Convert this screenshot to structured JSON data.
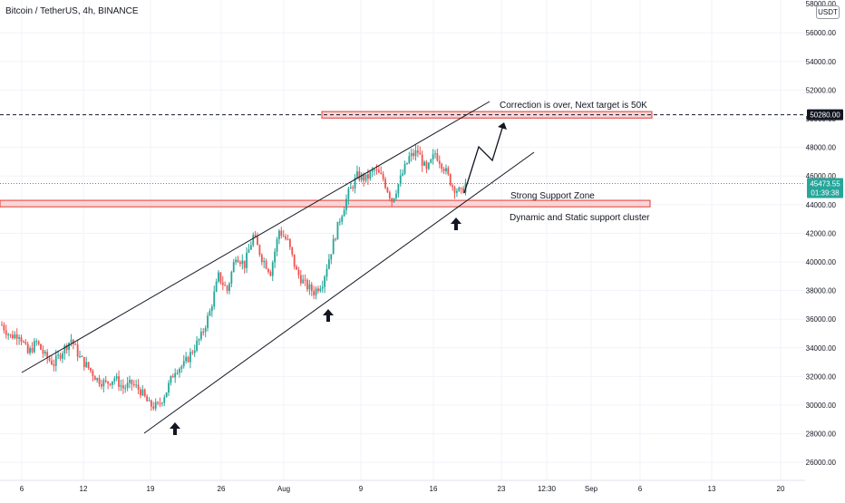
{
  "header": {
    "symbol": "Bitcoin / TetherUS, 4h, BINANCE",
    "currency": "USDT",
    "top_price_cut": "58000.00"
  },
  "colors": {
    "up": "#26a69a",
    "down": "#ef5350",
    "grid": "#f0f3fa",
    "zone_fill": "#f8c8c8",
    "zone_border": "#e53935",
    "price_label_bg": "#131722",
    "current_price_bg": "#26a69a"
  },
  "chart_data": {
    "type": "candlestick",
    "timeframe": "4h",
    "ylim": [
      25000,
      58500
    ],
    "y_ticks": [
      26000,
      28000,
      30000,
      32000,
      34000,
      36000,
      38000,
      40000,
      42000,
      44000,
      46000,
      48000,
      50000,
      52000,
      54000,
      56000
    ],
    "x_ticks": [
      "6",
      "12",
      "19",
      "26",
      "Aug",
      "9",
      "16",
      "23",
      "12:30",
      "Sep",
      "6",
      "13",
      "20"
    ],
    "levels": [
      {
        "name": "target",
        "price": 50280.0,
        "label": "50280.00"
      },
      {
        "name": "current",
        "price": 45473.55,
        "label": "45473.55",
        "countdown": "01:39:38"
      }
    ],
    "zones": [
      {
        "name": "target-zone",
        "from": 50050,
        "to": 50500
      },
      {
        "name": "support-zone",
        "from": 43850,
        "to": 44300
      }
    ],
    "annotations": [
      {
        "name": "target-annotation",
        "text": "Correction is over, Next target is 50K"
      },
      {
        "name": "support-zone-label",
        "text": "Strong Support Zone"
      },
      {
        "name": "support-cluster-label",
        "text": "Dynamic and Static support cluster"
      }
    ],
    "arrows_up_count": 3,
    "path_points_price": [
      [
        0,
        35600
      ],
      [
        4,
        34800
      ],
      [
        8,
        35000
      ],
      [
        12,
        33600
      ],
      [
        16,
        34400
      ],
      [
        20,
        33400
      ],
      [
        24,
        32900
      ],
      [
        28,
        33800
      ],
      [
        32,
        34600
      ],
      [
        36,
        33300
      ],
      [
        40,
        32600
      ],
      [
        44,
        31800
      ],
      [
        48,
        31500
      ],
      [
        52,
        31900
      ],
      [
        56,
        31200
      ],
      [
        60,
        31500
      ],
      [
        64,
        31000
      ],
      [
        68,
        30000
      ],
      [
        72,
        29900
      ],
      [
        76,
        31000
      ],
      [
        80,
        32500
      ],
      [
        84,
        32800
      ],
      [
        88,
        33800
      ],
      [
        92,
        34800
      ],
      [
        96,
        36500
      ],
      [
        100,
        39000
      ],
      [
        104,
        38000
      ],
      [
        108,
        40500
      ],
      [
        112,
        39800
      ],
      [
        116,
        41800
      ],
      [
        120,
        40300
      ],
      [
        124,
        39300
      ],
      [
        128,
        42200
      ],
      [
        132,
        41400
      ],
      [
        136,
        39300
      ],
      [
        140,
        38400
      ],
      [
        144,
        37900
      ],
      [
        148,
        38600
      ],
      [
        152,
        40800
      ],
      [
        156,
        43000
      ],
      [
        160,
        44800
      ],
      [
        164,
        46000
      ],
      [
        168,
        45800
      ],
      [
        172,
        46400
      ],
      [
        176,
        45800
      ],
      [
        180,
        44300
      ],
      [
        184,
        45800
      ],
      [
        188,
        47300
      ],
      [
        192,
        47700
      ],
      [
        196,
        46300
      ],
      [
        200,
        47600
      ],
      [
        204,
        46600
      ],
      [
        208,
        45300
      ],
      [
        212,
        44800
      ],
      [
        214,
        45473
      ]
    ]
  }
}
